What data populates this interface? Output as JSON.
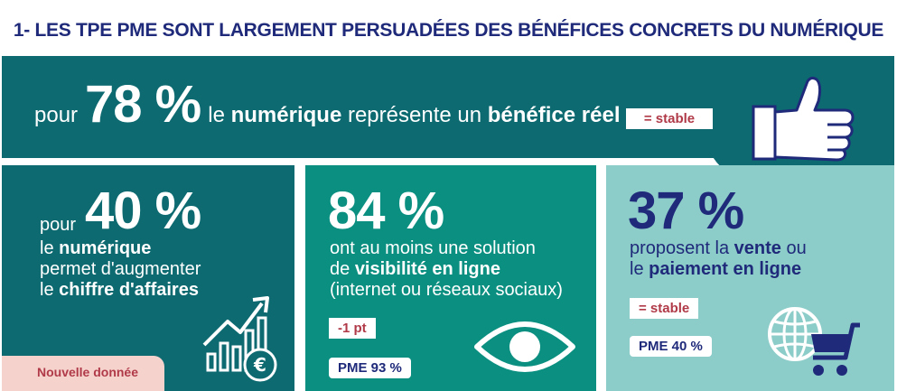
{
  "title": "1- LES TPE PME SONT LARGEMENT PERSUADÉES DES BÉNÉFICES CONCRETS DU NUMÉRIQUE",
  "top": {
    "prefix": "pour",
    "percent": "78 %",
    "text_pre": "le",
    "text_bold1": "numérique",
    "text_mid": "représente un",
    "text_bold2": "bénéfice réel",
    "badge": "= stable"
  },
  "card1": {
    "prefix": "pour",
    "percent": "40 %",
    "line1_pre": "le",
    "line1_bold": "numérique",
    "line2": "permet d'augmenter",
    "line3_pre": "le",
    "line3_bold": "chiffre d'affaires",
    "tag": "Nouvelle donnée"
  },
  "card2": {
    "percent": "84 %",
    "line1": "ont au moins une solution",
    "line2_pre": "de",
    "line2_bold": "visibilité en ligne",
    "line3": "(internet ou réseaux sociaux)",
    "badge": "-1 pt",
    "pme": "PME 93 %"
  },
  "card3": {
    "percent": "37 %",
    "line1_pre": "proposent la",
    "line1_bold": "vente",
    "line1_post": "ou",
    "line2_pre": "le",
    "line2_bold": "paiement en ligne",
    "badge": "= stable",
    "pme": "PME 40 %"
  },
  "icons": [
    "thumbs-up-icon",
    "growth-chart-icon",
    "euro-coin-icon",
    "eye-icon",
    "globe-icon",
    "shopping-cart-icon"
  ],
  "colors": {
    "navy": "#1f2a7a",
    "teal_dark": "#0c6a70",
    "teal": "#0a8f80",
    "teal_light": "#8dcdc9",
    "red": "#b03a48",
    "pink": "#f6d2cd"
  }
}
